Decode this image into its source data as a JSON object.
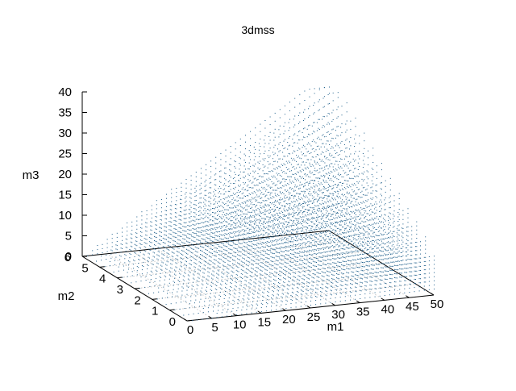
{
  "chart_data": {
    "type": "scatter3d",
    "title": "3dmss",
    "xlabel": "m1",
    "ylabel": "m2",
    "zlabel": "m3",
    "x_ticks": [
      "0",
      "5",
      "10",
      "15",
      "20",
      "25",
      "30",
      "35",
      "40",
      "45",
      "50"
    ],
    "y_ticks": [
      "0",
      "1",
      "2",
      "3",
      "4",
      "5",
      "6"
    ],
    "z_ticks": [
      "0",
      "5",
      "10",
      "15",
      "20",
      "25",
      "30",
      "35",
      "40"
    ],
    "xlim": [
      0,
      50
    ],
    "ylim": [
      0,
      6
    ],
    "zlim": [
      0,
      40
    ],
    "grid": true,
    "point_color": "#1f5f8b",
    "point_region": {
      "description_rule": "m3 ≈ 0.6·m1·(1 + m2/6), m1 in [0,50], m2 in [0,6]"
    }
  }
}
